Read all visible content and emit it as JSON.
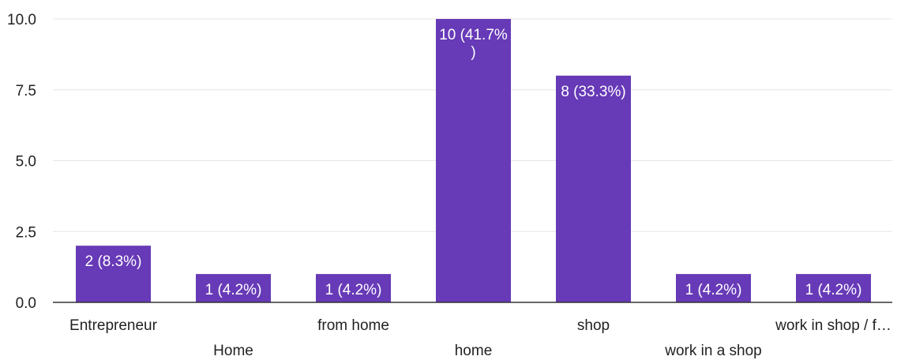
{
  "chart_data": {
    "type": "bar",
    "title": "",
    "xlabel": "",
    "ylabel": "",
    "ylim": [
      0,
      10
    ],
    "yticks": [
      "0.0",
      "2.5",
      "5.0",
      "7.5",
      "10.0"
    ],
    "grid": true,
    "legend": "none",
    "bar_color": "#673ab7",
    "categories": [
      "Entrepreneur",
      "Home",
      "from home",
      "home",
      "shop",
      "work in a shop",
      "work in shop / f…"
    ],
    "values": [
      2,
      1,
      1,
      10,
      8,
      1,
      1
    ],
    "data_labels": [
      [
        "2 (8.3%)"
      ],
      [
        "1 (4.2%)"
      ],
      [
        "1 (4.2%)"
      ],
      [
        "10 (41.7%",
        ")"
      ],
      [
        "8 (33.3%)"
      ],
      [
        "1 (4.2%)"
      ],
      [
        "1 (4.2%)"
      ]
    ]
  }
}
